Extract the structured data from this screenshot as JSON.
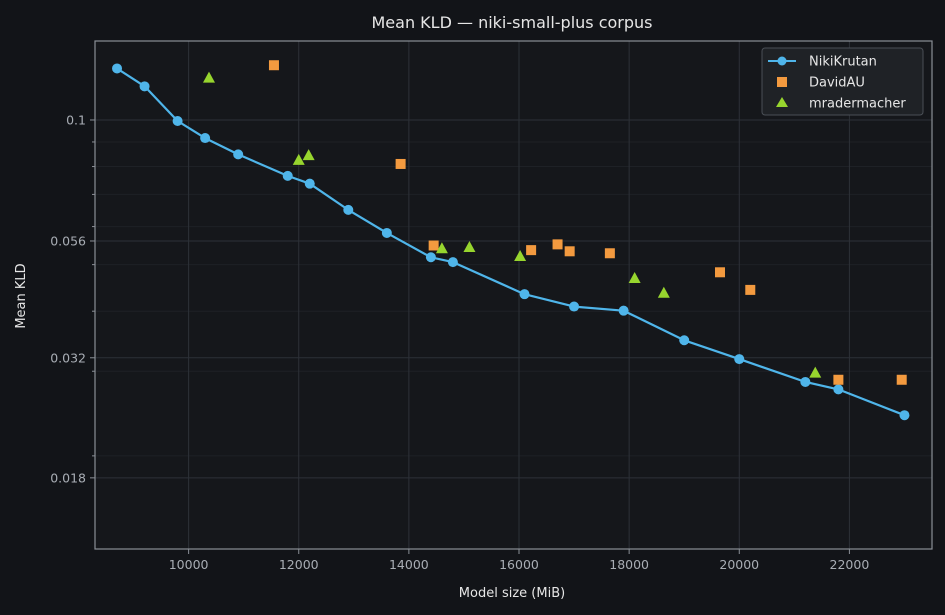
{
  "chart_data": {
    "type": "line",
    "title": "Mean KLD — niki-small-plus corpus",
    "xlabel": "Model size (MiB)",
    "ylabel": "Mean KLD",
    "y_scale": "log",
    "xlim": [
      8300,
      23500
    ],
    "ylim": [
      0.0128,
      0.146
    ],
    "x_ticks": [
      10000,
      12000,
      14000,
      16000,
      18000,
      20000,
      22000
    ],
    "x_tick_labels": [
      "10000",
      "12000",
      "14000",
      "16000",
      "18000",
      "20000",
      "22000"
    ],
    "y_ticks": [
      0.1,
      0.056,
      0.032,
      0.018
    ],
    "y_tick_labels": [
      "0.1",
      "0.056",
      "0.032",
      "0.018"
    ],
    "grid": true,
    "legend_position": "top-right",
    "colors": {
      "background": "#121418",
      "axes_face": "#15171b",
      "axes_edge": "#8a8f96",
      "grid": "#2d3138",
      "NikiKrutan": "#4fb5ea",
      "DavidAU": "#f39a3f",
      "mradermacher": "#97d52e"
    },
    "series": [
      {
        "name": "NikiKrutan",
        "style": "line-circle",
        "x": [
          8700,
          9200,
          9800,
          10300,
          10900,
          11800,
          12200,
          12900,
          13600,
          14400,
          14800,
          16100,
          17000,
          17900,
          19000,
          20000,
          21200,
          21800,
          23000
        ],
        "y": [
          0.128,
          0.1175,
          0.0995,
          0.0917,
          0.0848,
          0.0765,
          0.0737,
          0.065,
          0.0582,
          0.0518,
          0.0506,
          0.0434,
          0.0409,
          0.0401,
          0.0348,
          0.0318,
          0.0285,
          0.0275,
          0.0243
        ]
      },
      {
        "name": "DavidAU",
        "style": "square",
        "x": [
          11550,
          13850,
          14450,
          16220,
          16700,
          16920,
          17650,
          19650,
          20200,
          21800,
          22950
        ],
        "y": [
          0.13,
          0.081,
          0.0548,
          0.0536,
          0.0551,
          0.0533,
          0.0528,
          0.0482,
          0.0443,
          0.0288,
          0.0288
        ]
      },
      {
        "name": "mradermacher",
        "style": "triangle",
        "x": [
          10370,
          12000,
          12180,
          14600,
          15100,
          16020,
          18100,
          18630,
          21380
        ],
        "y": [
          0.1225,
          0.0826,
          0.0845,
          0.0541,
          0.0544,
          0.0521,
          0.0469,
          0.0437,
          0.0298
        ]
      }
    ]
  }
}
